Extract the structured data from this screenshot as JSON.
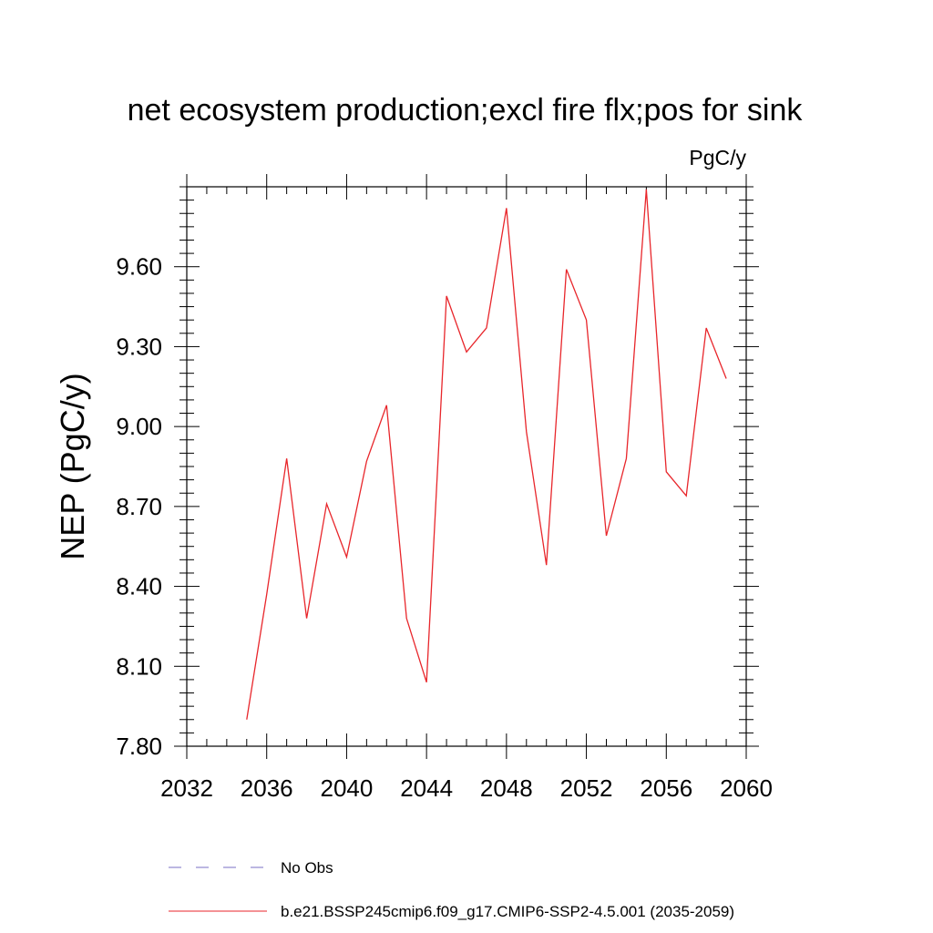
{
  "chart_data": {
    "type": "line",
    "title": "net ecosystem production;excl fire flx;pos for sink",
    "units_label": "PgC/y",
    "xlabel": "",
    "ylabel": "NEP  (PgC/y)",
    "xlim": [
      2032,
      2060
    ],
    "ylim": [
      7.8,
      9.9
    ],
    "x_ticks": [
      2032,
      2036,
      2040,
      2044,
      2048,
      2052,
      2056,
      2060
    ],
    "x_tick_labels": [
      "2032",
      "2036",
      "2040",
      "2044",
      "2048",
      "2052",
      "2056",
      "2060"
    ],
    "x_minor_step": 1,
    "y_ticks": [
      7.8,
      8.1,
      8.4,
      8.7,
      9.0,
      9.3,
      9.6
    ],
    "y_tick_labels": [
      "7.80",
      "8.10",
      "8.40",
      "8.70",
      "9.00",
      "9.30",
      "9.60"
    ],
    "y_minor_step": 0.05,
    "grid": false,
    "legend_placement": "bottom",
    "series": [
      {
        "name": "b.e21.BSSP245cmip6.f09_g17.CMIP6-SSP2-4.5.001 (2035-2059)",
        "color": "#e8262b",
        "style": "solid",
        "x": [
          2035,
          2036,
          2037,
          2038,
          2039,
          2040,
          2041,
          2042,
          2043,
          2044,
          2045,
          2046,
          2047,
          2048,
          2049,
          2050,
          2051,
          2052,
          2053,
          2054,
          2055,
          2056,
          2057,
          2058,
          2059
        ],
        "values": [
          7.9,
          8.37,
          8.88,
          8.28,
          8.71,
          8.51,
          8.87,
          9.08,
          8.28,
          8.04,
          9.49,
          9.28,
          9.37,
          9.82,
          8.98,
          8.48,
          9.59,
          9.4,
          8.59,
          8.88,
          9.89,
          8.83,
          8.74,
          9.37,
          9.18
        ]
      }
    ],
    "legend": [
      {
        "label": "No Obs",
        "color": "#7a6fc4",
        "style": "dashed"
      },
      {
        "label": "b.e21.BSSP245cmip6.f09_g17.CMIP6-SSP2-4.5.001 (2035-2059)",
        "color": "#e8262b",
        "style": "solid"
      }
    ]
  }
}
